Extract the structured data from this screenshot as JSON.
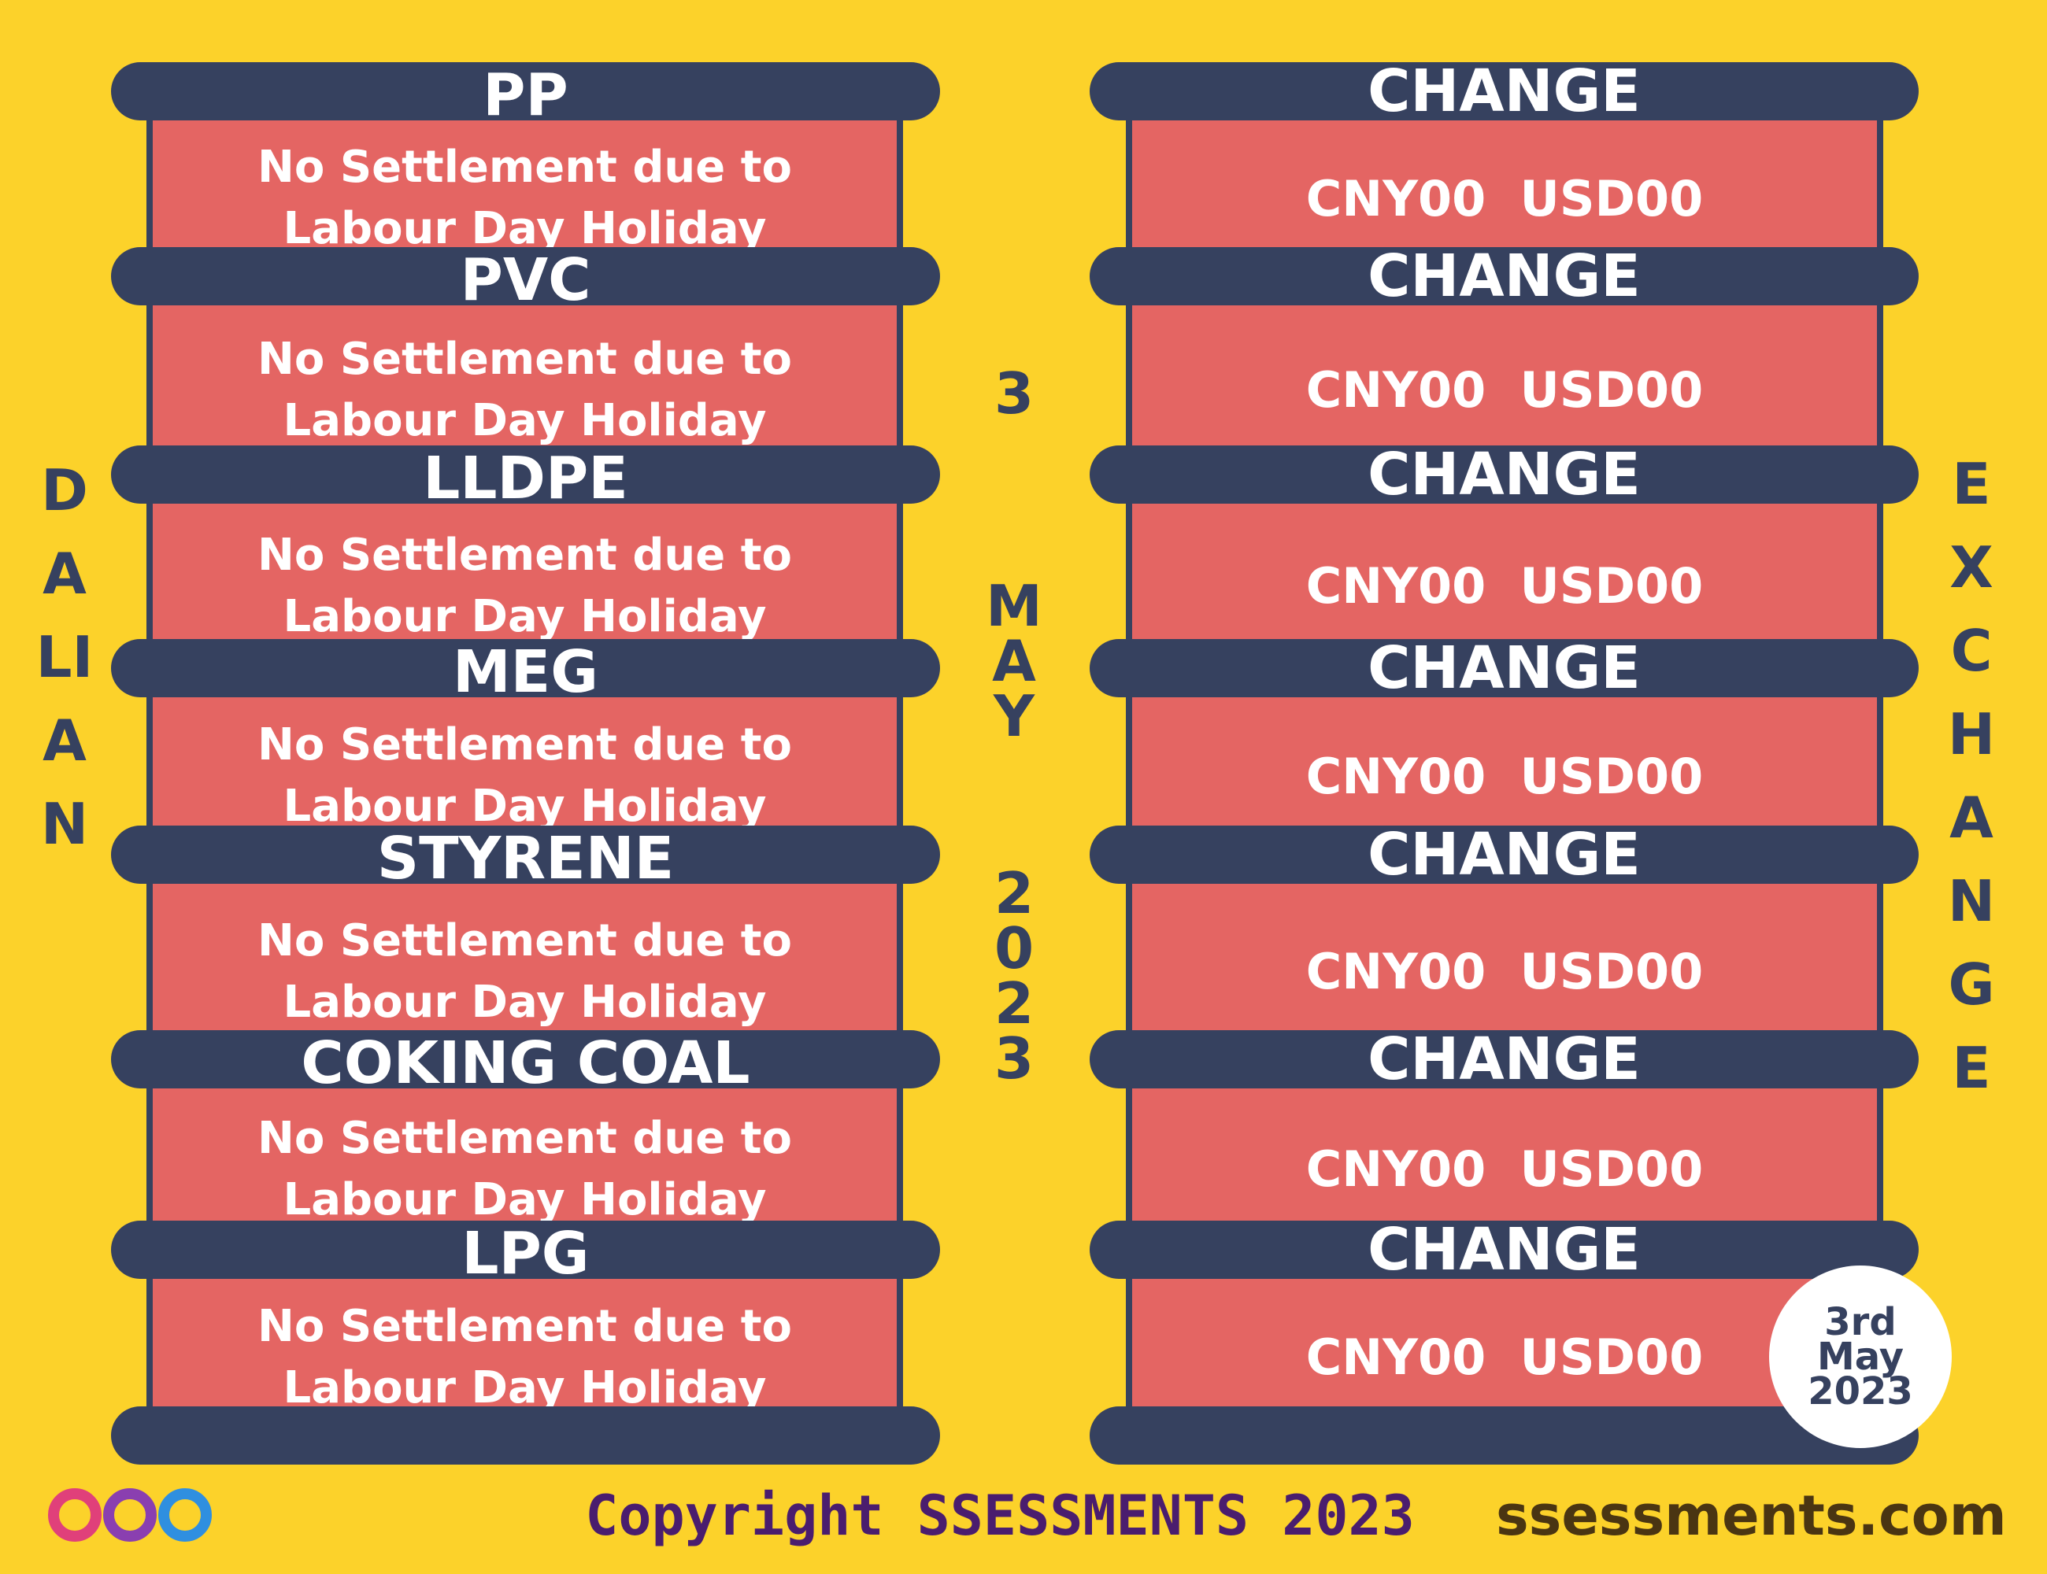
{
  "left_label": "DALIAN",
  "center_date": [
    "3",
    "MAY",
    "2023"
  ],
  "right_label": "EXCHANGE",
  "left_rows": [
    {
      "name": "PP",
      "text": "No Settlement due to Labour Day Holiday"
    },
    {
      "name": "PVC",
      "text": "No Settlement due to Labour Day Holiday"
    },
    {
      "name": "LLDPE",
      "text": "No Settlement due to Labour Day Holiday"
    },
    {
      "name": "MEG",
      "text": "No Settlement due to Labour Day Holiday"
    },
    {
      "name": "STYRENE",
      "text": "No Settlement due to Labour Day Holiday"
    },
    {
      "name": "COKING COAL",
      "text": "No Settlement due to Labour Day Holiday"
    },
    {
      "name": "LPG",
      "text": "No Settlement due to Labour Day Holiday"
    }
  ],
  "right_rows": [
    {
      "header": "CHANGE",
      "value": "CNY00  USD00"
    },
    {
      "header": "CHANGE",
      "value": "CNY00  USD00"
    },
    {
      "header": "CHANGE",
      "value": "CNY00  USD00"
    },
    {
      "header": "CHANGE",
      "value": "CNY00  USD00"
    },
    {
      "header": "CHANGE",
      "value": "CNY00  USD00"
    },
    {
      "header": "CHANGE",
      "value": "CNY00  USD00"
    },
    {
      "header": "CHANGE",
      "value": "CNY00  USD00"
    }
  ],
  "badge": "3rd May 2023",
  "footer": {
    "copyright": "Copyright SSESSMENTS 2023",
    "website": "ssessments.com"
  }
}
